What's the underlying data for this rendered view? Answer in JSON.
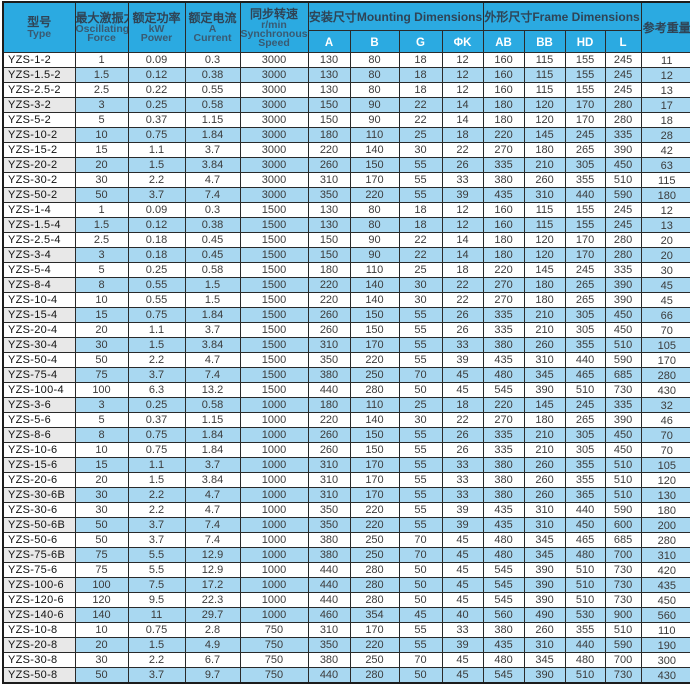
{
  "colors": {
    "header_bg": "#2baae1",
    "row_alt_blue": "#a9d8f1",
    "type_alt_gray": "#e8e8e8",
    "grid_line": "#2a2a2a",
    "header_text_zh": "#2f4456",
    "header_text_en": "#395a72",
    "subheader_text": "#ffffff"
  },
  "chart_data": {
    "type": "table",
    "header": {
      "type_zh": "型号",
      "type_en": "Type",
      "force_zh": "最大激振力KN",
      "force_en1": "Oscillating",
      "force_en2": "Force",
      "power_zh": "额定功率",
      "power_unit": "kW",
      "power_en": "Power",
      "current_zh": "额定电流",
      "current_unit": "A",
      "current_en": "Current",
      "speed_zh": "同步转速",
      "speed_unit": "r/min",
      "speed_en1": "Synchronous",
      "speed_en2": "Speed",
      "mounting_group": "安装尺寸Mounting Dimensions",
      "frame_group": "外形尺寸Frame Dimensions",
      "weight": "参考重量",
      "mounting_cols": [
        "A",
        "B",
        "G",
        "ΦK"
      ],
      "frame_cols": [
        "AB",
        "BB",
        "HD",
        "L"
      ]
    },
    "rows": [
      [
        "YZS-1-2",
        "1",
        "0.09",
        "0.3",
        "3000",
        "130",
        "80",
        "18",
        "12",
        "160",
        "115",
        "155",
        "245",
        "11"
      ],
      [
        "YZS-1.5-2",
        "1.5",
        "0.12",
        "0.38",
        "3000",
        "130",
        "80",
        "18",
        "12",
        "160",
        "115",
        "155",
        "245",
        "12"
      ],
      [
        "YZS-2.5-2",
        "2.5",
        "0.22",
        "0.55",
        "3000",
        "130",
        "80",
        "18",
        "12",
        "160",
        "115",
        "155",
        "245",
        "13"
      ],
      [
        "YZS-3-2",
        "3",
        "0.25",
        "0.58",
        "3000",
        "150",
        "90",
        "22",
        "14",
        "180",
        "120",
        "170",
        "280",
        "17"
      ],
      [
        "YZS-5-2",
        "5",
        "0.37",
        "1.15",
        "3000",
        "150",
        "90",
        "22",
        "14",
        "180",
        "120",
        "170",
        "280",
        "18"
      ],
      [
        "YZS-10-2",
        "10",
        "0.75",
        "1.84",
        "3000",
        "180",
        "110",
        "25",
        "18",
        "220",
        "145",
        "245",
        "335",
        "28"
      ],
      [
        "YZS-15-2",
        "15",
        "1.1",
        "3.7",
        "3000",
        "220",
        "140",
        "30",
        "22",
        "270",
        "180",
        "265",
        "390",
        "42"
      ],
      [
        "YZS-20-2",
        "20",
        "1.5",
        "3.84",
        "3000",
        "260",
        "150",
        "55",
        "26",
        "335",
        "210",
        "305",
        "450",
        "63"
      ],
      [
        "YZS-30-2",
        "30",
        "2.2",
        "4.7",
        "3000",
        "310",
        "170",
        "55",
        "33",
        "380",
        "260",
        "355",
        "510",
        "115"
      ],
      [
        "YZS-50-2",
        "50",
        "3.7",
        "7.4",
        "3000",
        "350",
        "220",
        "55",
        "39",
        "435",
        "310",
        "440",
        "590",
        "180"
      ],
      [
        "YZS-1-4",
        "1",
        "0.09",
        "0.3",
        "1500",
        "130",
        "80",
        "18",
        "12",
        "160",
        "115",
        "155",
        "245",
        "12"
      ],
      [
        "YZS-1.5-4",
        "1.5",
        "0.12",
        "0.38",
        "1500",
        "130",
        "80",
        "18",
        "12",
        "160",
        "115",
        "155",
        "245",
        "13"
      ],
      [
        "YZS-2.5-4",
        "2.5",
        "0.18",
        "0.45",
        "1500",
        "150",
        "90",
        "22",
        "14",
        "180",
        "120",
        "170",
        "280",
        "20"
      ],
      [
        "YZS-3-4",
        "3",
        "0.18",
        "0.45",
        "1500",
        "150",
        "90",
        "22",
        "14",
        "180",
        "120",
        "170",
        "280",
        "20"
      ],
      [
        "YZS-5-4",
        "5",
        "0.25",
        "0.58",
        "1500",
        "180",
        "110",
        "25",
        "18",
        "220",
        "145",
        "245",
        "335",
        "30"
      ],
      [
        "YZS-8-4",
        "8",
        "0.55",
        "1.5",
        "1500",
        "220",
        "140",
        "30",
        "22",
        "270",
        "180",
        "265",
        "390",
        "45"
      ],
      [
        "YZS-10-4",
        "10",
        "0.55",
        "1.5",
        "1500",
        "220",
        "140",
        "30",
        "22",
        "270",
        "180",
        "265",
        "390",
        "45"
      ],
      [
        "YZS-15-4",
        "15",
        "0.75",
        "1.84",
        "1500",
        "260",
        "150",
        "55",
        "26",
        "335",
        "210",
        "305",
        "450",
        "66"
      ],
      [
        "YZS-20-4",
        "20",
        "1.1",
        "3.7",
        "1500",
        "260",
        "150",
        "55",
        "26",
        "335",
        "210",
        "305",
        "450",
        "70"
      ],
      [
        "YZS-30-4",
        "30",
        "1.5",
        "3.84",
        "1500",
        "310",
        "170",
        "55",
        "33",
        "380",
        "260",
        "355",
        "510",
        "105"
      ],
      [
        "YZS-50-4",
        "50",
        "2.2",
        "4.7",
        "1500",
        "350",
        "220",
        "55",
        "39",
        "435",
        "310",
        "440",
        "590",
        "170"
      ],
      [
        "YZS-75-4",
        "75",
        "3.7",
        "7.4",
        "1500",
        "380",
        "250",
        "70",
        "45",
        "480",
        "345",
        "465",
        "685",
        "280"
      ],
      [
        "YZS-100-4",
        "100",
        "6.3",
        "13.2",
        "1500",
        "440",
        "280",
        "50",
        "45",
        "545",
        "390",
        "510",
        "730",
        "430"
      ],
      [
        "YZS-3-6",
        "3",
        "0.25",
        "0.58",
        "1000",
        "180",
        "110",
        "25",
        "18",
        "220",
        "145",
        "245",
        "335",
        "32"
      ],
      [
        "YZS-5-6",
        "5",
        "0.37",
        "1.15",
        "1000",
        "220",
        "140",
        "30",
        "22",
        "270",
        "180",
        "265",
        "390",
        "46"
      ],
      [
        "YZS-8-6",
        "8",
        "0.75",
        "1.84",
        "1000",
        "260",
        "150",
        "55",
        "26",
        "335",
        "210",
        "305",
        "450",
        "70"
      ],
      [
        "YZS-10-6",
        "10",
        "0.75",
        "1.84",
        "1000",
        "260",
        "150",
        "55",
        "26",
        "335",
        "210",
        "305",
        "450",
        "70"
      ],
      [
        "YZS-15-6",
        "15",
        "1.1",
        "3.7",
        "1000",
        "310",
        "170",
        "55",
        "33",
        "380",
        "260",
        "355",
        "510",
        "105"
      ],
      [
        "YZS-20-6",
        "20",
        "1.5",
        "3.84",
        "1000",
        "310",
        "170",
        "55",
        "33",
        "380",
        "260",
        "355",
        "510",
        "120"
      ],
      [
        "YZS-30-6B",
        "30",
        "2.2",
        "4.7",
        "1000",
        "310",
        "170",
        "55",
        "33",
        "380",
        "260",
        "365",
        "510",
        "130"
      ],
      [
        "YZS-30-6",
        "30",
        "2.2",
        "4.7",
        "1000",
        "350",
        "220",
        "55",
        "39",
        "435",
        "310",
        "440",
        "590",
        "180"
      ],
      [
        "YZS-50-6B",
        "50",
        "3.7",
        "7.4",
        "1000",
        "350",
        "220",
        "55",
        "39",
        "435",
        "310",
        "450",
        "600",
        "200"
      ],
      [
        "YZS-50-6",
        "50",
        "3.7",
        "7.4",
        "1000",
        "380",
        "250",
        "70",
        "45",
        "480",
        "345",
        "465",
        "685",
        "280"
      ],
      [
        "YZS-75-6B",
        "75",
        "5.5",
        "12.9",
        "1000",
        "380",
        "250",
        "70",
        "45",
        "480",
        "345",
        "480",
        "700",
        "310"
      ],
      [
        "YZS-75-6",
        "75",
        "5.5",
        "12.9",
        "1000",
        "440",
        "280",
        "50",
        "45",
        "545",
        "390",
        "510",
        "730",
        "420"
      ],
      [
        "YZS-100-6",
        "100",
        "7.5",
        "17.2",
        "1000",
        "440",
        "280",
        "50",
        "45",
        "545",
        "390",
        "510",
        "730",
        "435"
      ],
      [
        "YZS-120-6",
        "120",
        "9.5",
        "22.3",
        "1000",
        "440",
        "280",
        "50",
        "45",
        "545",
        "390",
        "510",
        "730",
        "450"
      ],
      [
        "YZS-140-6",
        "140",
        "11",
        "29.7",
        "1000",
        "460",
        "354",
        "45",
        "40",
        "560",
        "490",
        "530",
        "900",
        "560"
      ],
      [
        "YZS-10-8",
        "10",
        "0.75",
        "2.8",
        "750",
        "310",
        "170",
        "55",
        "33",
        "380",
        "260",
        "355",
        "510",
        "110"
      ],
      [
        "YZS-20-8",
        "20",
        "1.5",
        "4.9",
        "750",
        "350",
        "220",
        "55",
        "39",
        "435",
        "310",
        "440",
        "590",
        "190"
      ],
      [
        "YZS-30-8",
        "30",
        "2.2",
        "6.7",
        "750",
        "380",
        "250",
        "70",
        "45",
        "480",
        "345",
        "480",
        "700",
        "300"
      ],
      [
        "YZS-50-8",
        "50",
        "3.7",
        "9.7",
        "750",
        "440",
        "280",
        "50",
        "45",
        "545",
        "390",
        "510",
        "730",
        "430"
      ]
    ]
  }
}
